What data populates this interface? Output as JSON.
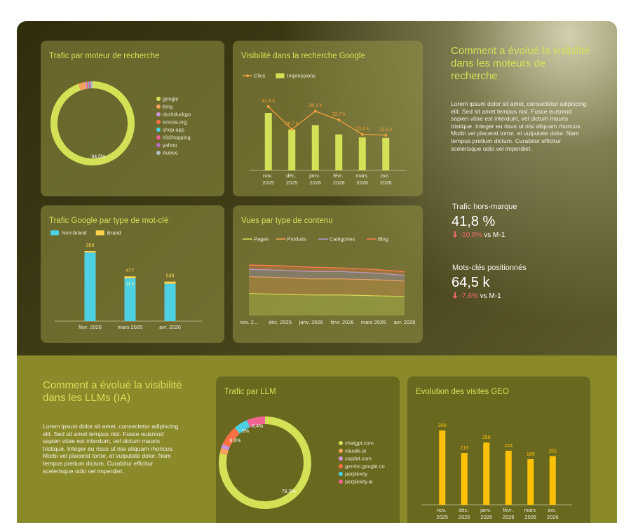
{
  "sections": [
    {
      "title": "Comment a évolué la visibilité dans les moteurs de recherche",
      "text": "Lorem ipsum dolor sit amet, consectetur adipiscing elit. Sed sit amet tempus nisl. Fusce euismod sapien vitae est interdum, vel dictum mauris tristique. Integer eu risus ut nisi aliquam rhoncus. Morbi vel placerat tortor, et vulputate dolor. Nam tempus pretium dictum. Curabitur efficitur scelerisque odio vel imperdiet.",
      "kpis": [
        {
          "label": "Trafic hors-marque",
          "value": "41,8 %",
          "delta": "-10,8%",
          "compare": "vs M-1"
        },
        {
          "label": "Mots-clés positionnés",
          "value": "64,5 k",
          "delta": "-7,6%",
          "compare": "vs M-1"
        }
      ]
    },
    {
      "title": "Comment a évolué la visibilité dans les LLMs (IA)",
      "text": "Lorem ipsum dolor sit amet, consectetur adipiscing elit. Sed sit amet tempus nisl. Fusce euismod sapien vitae est interdum, vel dictum mauris tristique. Integer eu risus ut nisi aliquam rhoncus. Morbi vel placerat tortor, et vulputate dolor. Nam tempus pretium dictum. Curabitur efficitur scelerisque odio vel imperdiet."
    }
  ],
  "chart_data": [
    {
      "type": "donut",
      "title": "Trafic par moteur de recherche",
      "categories": [
        "google",
        "bing",
        "duckduckgo",
        "ecosia.org",
        "shop.app",
        "IGShopping",
        "yahoo",
        "Autres"
      ],
      "values": [
        94.5,
        2.6,
        0.6,
        0.5,
        0.4,
        0.4,
        0.3,
        0.7
      ],
      "value_labels": [
        "94.5%",
        null,
        null,
        null,
        null,
        null,
        null,
        null
      ],
      "colors": [
        "#d4e157",
        "#f4a35b",
        "#ce93d8",
        "#ff7043",
        "#4dd0e1",
        "#f06292",
        "#ba68c8",
        "#b0bec5"
      ]
    },
    {
      "type": "combo",
      "title": "Visibilité dans la recherche Google",
      "categories": [
        "nov. 2025",
        "déc. 2025",
        "janv. 2026",
        "févr. 2026",
        "mars 2026",
        "avr. 2026"
      ],
      "series": [
        {
          "name": "Clics",
          "type": "line",
          "color": "#f0a03c",
          "values": [
            41400,
            26700,
            38400,
            32700,
            23400,
            22800
          ],
          "value_labels": [
            "41,4 k",
            "26,7 k",
            "38,4 k",
            "32,7 k",
            "23,4 k",
            "22,8 k"
          ]
        },
        {
          "name": "Impressions",
          "type": "bar",
          "color": "#d4e157",
          "values": [
            800,
            570,
            630,
            500,
            460,
            450
          ]
        }
      ]
    },
    {
      "type": "stacked_bar",
      "title": "Trafic Google par type de mot-clé",
      "categories": [
        "févr. 2026",
        "mars 2026",
        "avr. 2026"
      ],
      "series": [
        {
          "name": "Non-brand",
          "color": "#4dd0e1",
          "values": [
            17600,
            11000,
            9600
          ],
          "value_labels": [
            null,
            "11 k",
            null
          ]
        },
        {
          "name": "Brand",
          "color": "#ffd54f",
          "values": [
            386,
            477,
            539
          ]
        }
      ]
    },
    {
      "type": "stacked_area",
      "title": "Vues par type de contenu",
      "categories": [
        "nov. 2...",
        "déc. 2025",
        "janv. 2026",
        "févr. 2026",
        "mars 2026",
        "avr. 2026"
      ],
      "series": [
        {
          "name": "Pages",
          "color": "#d4e157",
          "values": [
            30,
            29,
            28,
            28,
            27,
            26
          ]
        },
        {
          "name": "Produits",
          "color": "#f4a35b",
          "values": [
            23,
            23,
            22,
            22,
            22,
            21
          ]
        },
        {
          "name": "Catégories",
          "color": "#b39ddb",
          "values": [
            10,
            10,
            10,
            10,
            9,
            8
          ]
        },
        {
          "name": "Blog",
          "color": "#ff7f50",
          "values": [
            6,
            6,
            6,
            5,
            5,
            5
          ]
        }
      ]
    },
    {
      "type": "donut",
      "title": "Trafic par LLM",
      "categories": [
        "chatgpt.com",
        "claude.ai",
        "copilot.com",
        "gemini.google.co",
        "perplexity",
        "perplexity.ai"
      ],
      "values": [
        78.2,
        2.0,
        1.5,
        6.9,
        5,
        6.4
      ],
      "value_labels": [
        "78.2%",
        null,
        null,
        "6.9%",
        "5%",
        "6.4%"
      ],
      "colors": [
        "#d4e157",
        "#f4a35b",
        "#ce93d8",
        "#ff7043",
        "#4dd0e1",
        "#f06292"
      ]
    },
    {
      "type": "bar",
      "title": "Evolution des visites GEO",
      "categories": [
        "nov. 2025",
        "déc. 2025",
        "janv. 2026",
        "févr. 2026",
        "mars 2026",
        "avr. 2026"
      ],
      "values": [
        308,
        215,
        258,
        224,
        189,
        202
      ],
      "color": "#ffc107"
    }
  ]
}
